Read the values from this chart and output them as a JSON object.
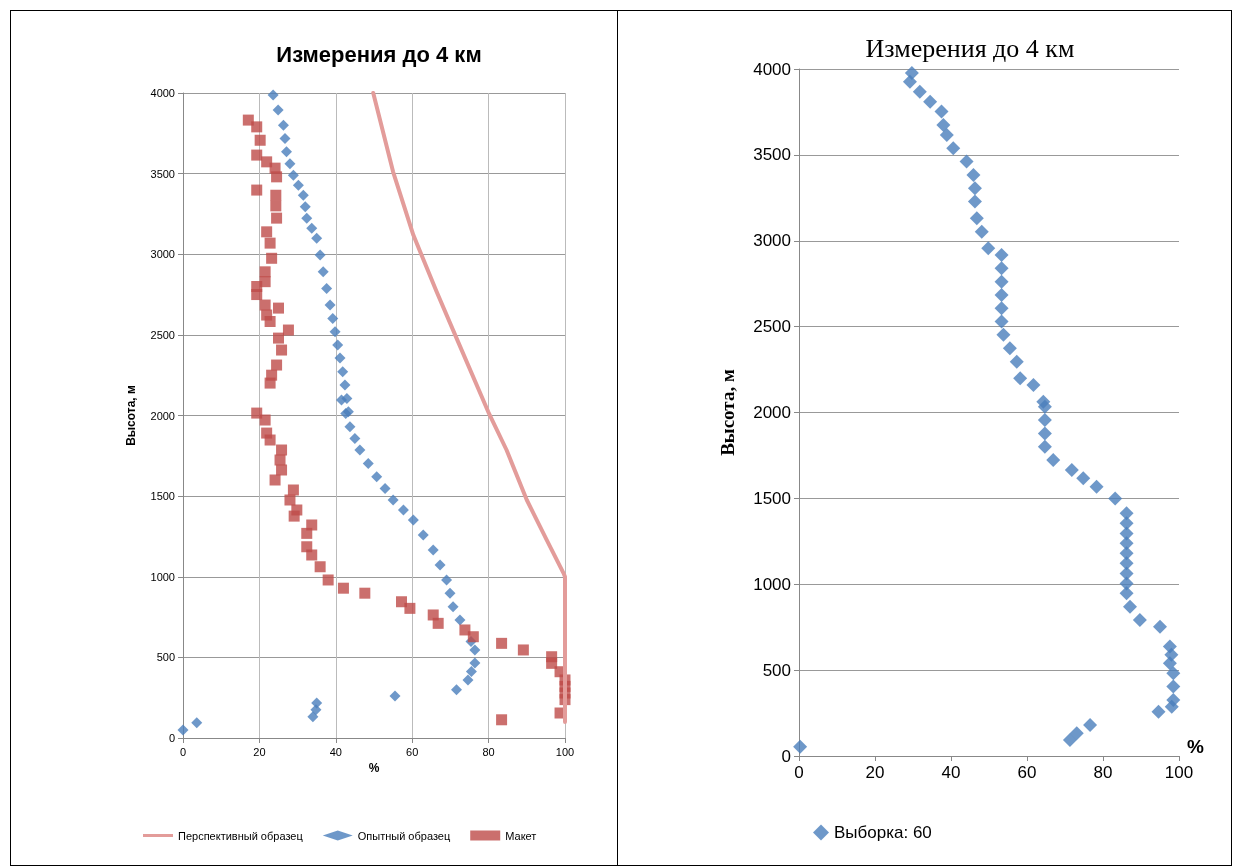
{
  "chart_data": [
    {
      "type": "scatter",
      "title": "Измерения до 4 км",
      "xlabel": "%",
      "ylabel": "Высота, м",
      "xlim": [
        0,
        100
      ],
      "xticks": [
        0,
        20,
        40,
        60,
        80,
        100
      ],
      "ylim": [
        0,
        4000
      ],
      "yticks": [
        0,
        500,
        1000,
        1500,
        2000,
        2500,
        3000,
        3500,
        4000
      ],
      "grid": true,
      "legend": "bottom",
      "series": [
        {
          "name": "Перспективный образец",
          "type": "line",
          "marker": "none",
          "color": "#e39c9a",
          "x": [
            49.8,
            55,
            60.3,
            66.4,
            71.6,
            79.9,
            84.7,
            90,
            95.2,
            99.6,
            100,
            100
          ],
          "values": [
            4000,
            3511,
            3119,
            2767,
            2480,
            2023,
            1786,
            1476,
            1228,
            1023,
            1000,
            100
          ]
        },
        {
          "name": "Опытный образец",
          "type": "scatter",
          "marker": "diamond",
          "color": "#4a7ebb",
          "x": [
            23.6,
            24.9,
            26.3,
            26.7,
            27.1,
            28,
            28.9,
            30.2,
            31.5,
            32,
            32.4,
            33.7,
            35,
            35.9,
            36.7,
            37.6,
            38.5,
            39.2,
            39.8,
            40.5,
            41.1,
            41.8,
            42.4,
            42.9,
            43.3,
            41.5,
            42.6,
            43.7,
            45,
            46.3,
            48.5,
            50.7,
            52.9,
            55,
            57.7,
            60.3,
            62.9,
            65.5,
            67.3,
            69,
            69.9,
            70.7,
            72.5,
            74.3,
            75.4,
            76.4,
            76.4,
            75.5,
            74.6,
            71.6,
            0,
            3.6,
            34,
            34.8,
            35,
            55.5
          ],
          "values": [
            3987,
            3895,
            3800,
            3718,
            3635,
            3562,
            3490,
            3428,
            3366,
            3295,
            3224,
            3162,
            3100,
            2995,
            2891,
            2788,
            2685,
            2602,
            2519,
            2437,
            2356,
            2272,
            2189,
            2106,
            2023,
            2096,
            2013,
            1930,
            1858,
            1786,
            1703,
            1620,
            1548,
            1476,
            1414,
            1352,
            1259,
            1166,
            1073,
            980,
            897,
            814,
            732,
            null,
            598,
            546,
            465,
            412,
            360,
            300,
            50,
            95,
            132,
            175,
            217,
            260
          ]
        },
        {
          "name": "Макет",
          "type": "scatter",
          "marker": "square",
          "color": "#be4b48",
          "x": [
            17.1,
            19.3,
            20.2,
            19.3,
            21.9,
            24.1,
            24.5,
            19.3,
            24.3,
            24.3,
            24.5,
            21.9,
            22.8,
            23.2,
            21.5,
            21.5,
            19.3,
            19.3,
            21.5,
            21.9,
            22.8,
            25,
            27.6,
            25,
            25.8,
            24.5,
            23.2,
            22.8,
            19.3,
            21.5,
            21.9,
            22.8,
            25.8,
            25.4,
            25.8,
            24.1,
            28.9,
            28,
            29.8,
            29.1,
            33.7,
            32.4,
            32.4,
            33.7,
            35.9,
            38,
            42,
            47.6,
            57.2,
            59.4,
            65.5,
            66.8,
            73.8,
            76,
            83.4,
            89.1,
            96.5,
            96.5,
            98.7,
            100,
            100,
            100,
            100,
            98.7,
            83.4
          ],
          "values": [
            3832,
            3790,
            3707,
            3615,
            3573,
            3534,
            3480,
            3398,
            3366,
            3300,
            3224,
            3139,
            3069,
            2975,
            2891,
            2830,
            2800,
            2750,
            2685,
            2623,
            2583,
            2666,
            2530,
            2480,
            2406,
            2313,
            2250,
            2201,
            2015,
            1972,
            1891,
            1848,
            1786,
            1724,
            1662,
            1600,
            1538,
            1476,
            1414,
            1376,
            1321,
            1269,
            1186,
            1135,
            1062,
            980,
            929,
            898,
            845,
            804,
            763,
            711,
            670,
            628,
            587,
            546,
            504,
            463,
            411,
            360,
            320,
            279,
            238,
            155,
            113
          ]
        }
      ]
    },
    {
      "type": "scatter",
      "title": "Измерения до 4 км",
      "xlabel": "%",
      "ylabel": "Высота, м",
      "xlim": [
        0,
        100
      ],
      "xticks": [
        0,
        20,
        40,
        60,
        80,
        100
      ],
      "ylim": [
        0,
        4000
      ],
      "yticks": [
        0,
        500,
        1000,
        1500,
        2000,
        2500,
        3000,
        3500,
        4000
      ],
      "grid": "y",
      "legend": "bottom",
      "marker": "diamond",
      "series": [
        {
          "name": "Выборка: 60",
          "color": "#4a7ebb",
          "x": [
            29.7,
            29.2,
            31.8,
            34.5,
            37.5,
            38,
            38.9,
            40.6,
            44.1,
            45.9,
            46.3,
            46.3,
            46.8,
            48.1,
            49.8,
            53.3,
            53.3,
            53.3,
            53.3,
            53.3,
            53.3,
            53.8,
            55.5,
            57.3,
            58.2,
            61.7,
            64.3,
            64.7,
            64.7,
            64.7,
            64.7,
            66.9,
            71.8,
            74.8,
            78.3,
            83.2,
            86.2,
            86.2,
            86.2,
            86.2,
            86.2,
            86.2,
            86.2,
            86.2,
            86.2,
            87.1,
            89.7,
            95,
            97.6,
            98,
            97.6,
            98.5,
            98.5,
            98.5,
            98.1,
            94.6,
            76.6,
            73.1,
            71.3,
            0.3
          ],
          "values": [
            3977,
            3926,
            3868,
            3810,
            3752,
            3674,
            3616,
            3538,
            3461,
            3383,
            3306,
            3228,
            3131,
            3053,
            2956,
            2917,
            2840,
            2762,
            2684,
            2607,
            2530,
            2452,
            2374,
            2296,
            2199,
            2160,
            2063,
            2034,
            1956,
            1878,
            1801,
            1723,
            1665,
            1617,
            1568,
            1500,
            1413,
            1355,
            1296,
            1238,
            1180,
            1122,
            1063,
            1005,
            947,
            869,
            792,
            753,
            637,
            590,
            540,
            482,
            404,
            326,
            287,
            258,
            180,
            132,
            93,
            54
          ]
        }
      ]
    }
  ]
}
